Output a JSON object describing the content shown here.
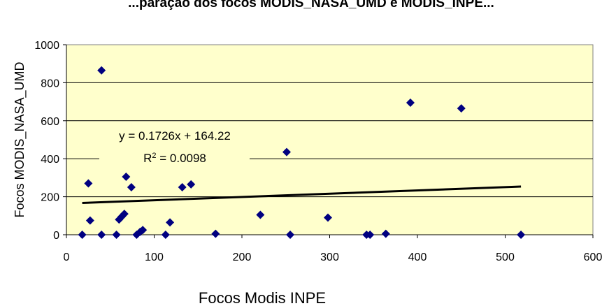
{
  "chart_data": {
    "type": "scatter",
    "title": "...paração dos focos MODIS_NASA_UMD e MODIS_INPE...",
    "xlabel": "Focos Modis INPE",
    "ylabel": "Focos MODIS_NASA_UMD",
    "xlim": [
      0,
      600
    ],
    "ylim": [
      0,
      1000
    ],
    "xticks": [
      "0",
      "100",
      "200",
      "300",
      "400",
      "500",
      "600"
    ],
    "yticks": [
      "0",
      "200",
      "400",
      "600",
      "800",
      "1000"
    ],
    "grid": "horizontal",
    "plot_background": "#FFFFCC",
    "marker_color": "#000080",
    "trendline_color": "#000000",
    "series": [
      {
        "points": [
          {
            "x": 18,
            "y": 0
          },
          {
            "x": 25,
            "y": 270
          },
          {
            "x": 27,
            "y": 75
          },
          {
            "x": 40,
            "y": 865
          },
          {
            "x": 40,
            "y": 0
          },
          {
            "x": 57,
            "y": 0
          },
          {
            "x": 60,
            "y": 80
          },
          {
            "x": 63,
            "y": 95
          },
          {
            "x": 66,
            "y": 110
          },
          {
            "x": 68,
            "y": 305
          },
          {
            "x": 74,
            "y": 250
          },
          {
            "x": 80,
            "y": 0
          },
          {
            "x": 84,
            "y": 15
          },
          {
            "x": 87,
            "y": 25
          },
          {
            "x": 113,
            "y": 0
          },
          {
            "x": 118,
            "y": 65
          },
          {
            "x": 132,
            "y": 250
          },
          {
            "x": 142,
            "y": 265
          },
          {
            "x": 170,
            "y": 5
          },
          {
            "x": 221,
            "y": 105
          },
          {
            "x": 251,
            "y": 435
          },
          {
            "x": 255,
            "y": 0
          },
          {
            "x": 298,
            "y": 90
          },
          {
            "x": 342,
            "y": 0
          },
          {
            "x": 346,
            "y": 0
          },
          {
            "x": 364,
            "y": 5
          },
          {
            "x": 392,
            "y": 695
          },
          {
            "x": 450,
            "y": 665
          },
          {
            "x": 518,
            "y": 0
          }
        ]
      }
    ],
    "trendline": {
      "equation": "y = 0.1726x + 164.22",
      "r2_prefix": "R",
      "r2_sup": "2",
      "r2_suffix": " = 0.0098",
      "slope": 0.1726,
      "intercept": 164.22,
      "x_range": [
        18,
        518
      ]
    }
  }
}
